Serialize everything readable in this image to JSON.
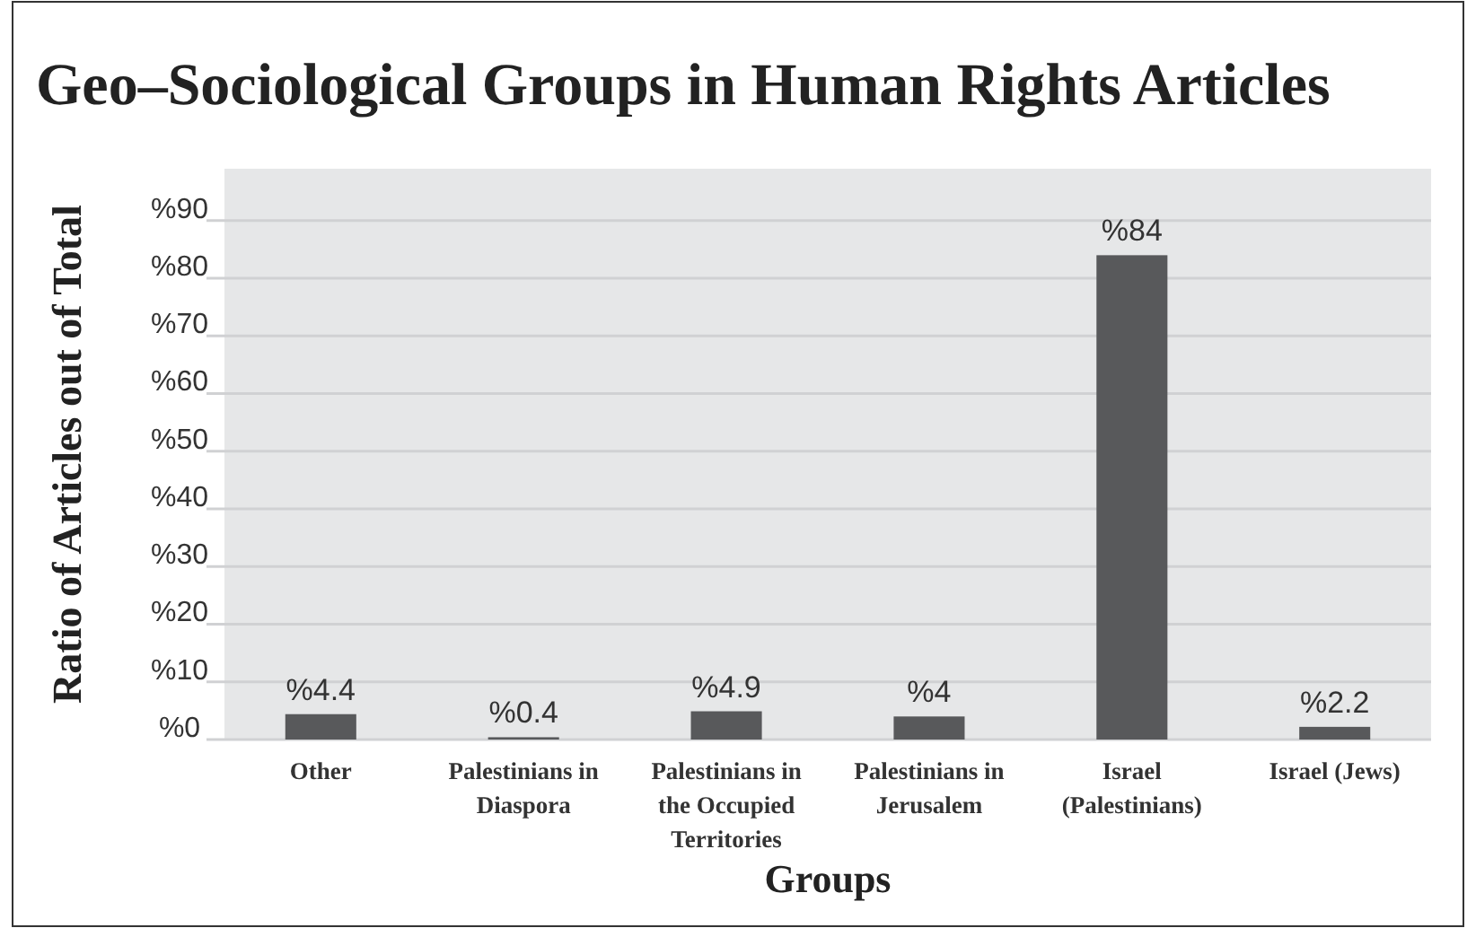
{
  "chart_data": {
    "type": "bar",
    "title": "Geo–Sociological Groups in Human Rights Articles",
    "xlabel": "Groups",
    "ylabel": "Ratio of Articles out of Total",
    "categories": [
      "Other",
      "Palestinians in Diaspora",
      "Palestinians in the Occupied Territories",
      "Palestinians in Jerusalem",
      "Israel (Palestinians)",
      "Israel (Jews)"
    ],
    "values": [
      4.4,
      0.4,
      4.9,
      4,
      84,
      2.2
    ],
    "value_labels": [
      "%4.4",
      "%0.4",
      "%4.9",
      "%4",
      "%84",
      "%2.2"
    ],
    "color": "#58595b",
    "ylim": [
      0,
      99
    ],
    "yticks": [
      {
        "value": 0,
        "label": "%0"
      },
      {
        "value": 10,
        "label": "%10"
      },
      {
        "value": 20,
        "label": "%20"
      },
      {
        "value": 30,
        "label": "%30"
      },
      {
        "value": 40,
        "label": "%40"
      },
      {
        "value": 50,
        "label": "%50"
      },
      {
        "value": 60,
        "label": "%60"
      },
      {
        "value": 70,
        "label": "%70"
      },
      {
        "value": 80,
        "label": "%80"
      },
      {
        "value": 90,
        "label": "%90"
      }
    ],
    "grid": "y"
  }
}
